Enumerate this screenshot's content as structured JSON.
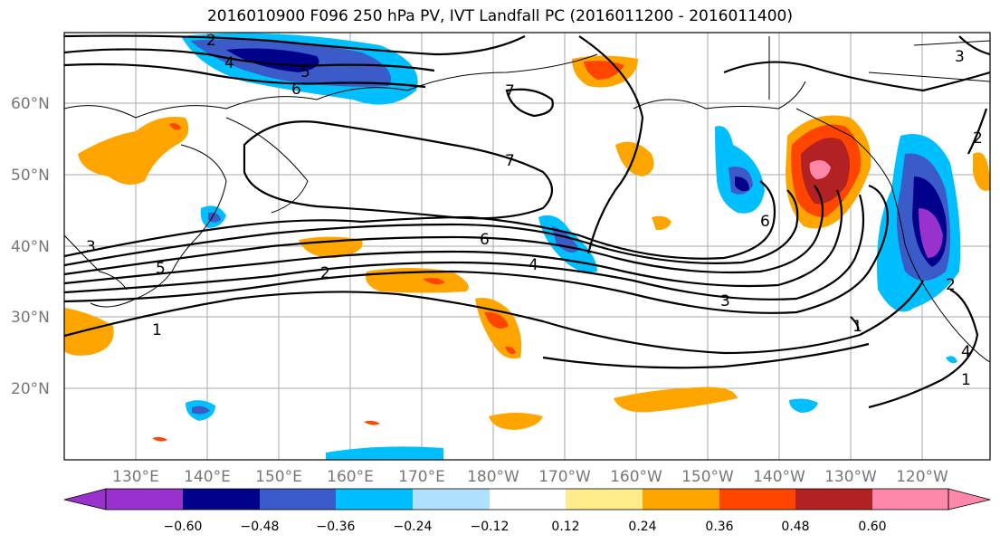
{
  "title": "2016010900 F096 250 hPa PV, IVT Landfall PC (2016011200 - 2016011400)",
  "lat_labels": [
    "60°N",
    "50°N",
    "40°N",
    "30°N",
    "20°N"
  ],
  "lon_labels": [
    "130°E",
    "140°E",
    "150°E",
    "160°E",
    "170°E",
    "180°W",
    "170°W",
    "160°W",
    "150°W",
    "140°W",
    "130°W",
    "120°W"
  ],
  "contour_labels": [
    "2",
    "4",
    "5",
    "6",
    "7",
    "7",
    "6",
    "4",
    "2",
    "5",
    "1",
    "3",
    "1",
    "2",
    "4",
    "3",
    "6",
    "2",
    "3",
    "1"
  ],
  "colorbar": {
    "colors": [
      "#9932cc",
      "#00008b",
      "#3a5bc8",
      "#00bfff",
      "#b0e2ff",
      "#ffffff",
      "#ffec8b",
      "#ffa500",
      "#ff4500",
      "#b22222",
      "#ff88aa"
    ],
    "ticks": [
      "−0.60",
      "−0.48",
      "−0.36",
      "−0.24",
      "−0.12",
      "0.12",
      "0.24",
      "0.36",
      "0.48",
      "0.60"
    ]
  }
}
